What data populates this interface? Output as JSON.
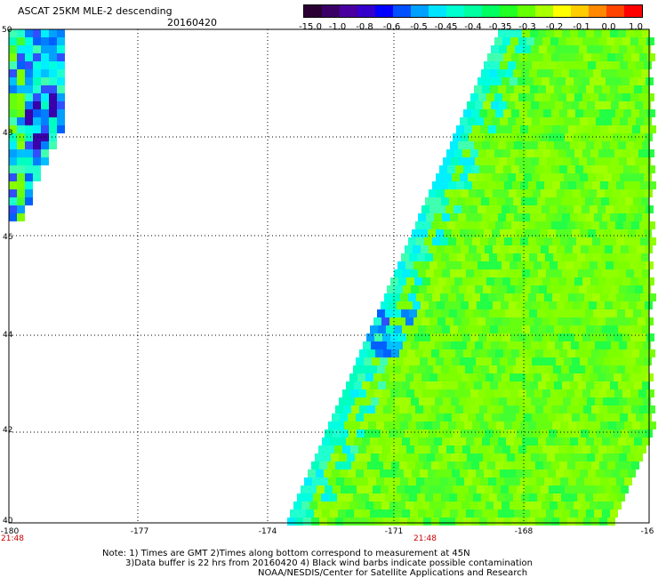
{
  "header": {
    "title": "ASCAT 25KM MLE-2 descending",
    "date": "20160420"
  },
  "colorbar": {
    "colors": [
      "#2a0033",
      "#3a0066",
      "#4a00a0",
      "#3300cc",
      "#0000ff",
      "#0050ff",
      "#00a0ff",
      "#00e5ff",
      "#00ffd0",
      "#00ffa0",
      "#00ff60",
      "#22ff22",
      "#66ff00",
      "#aaff00",
      "#ffff00",
      "#ffcc00",
      "#ff8800",
      "#ff4400",
      "#ff0000"
    ],
    "labels": [
      "-15.0",
      "-1.0",
      "-0.8",
      "-0.6",
      "-0.5",
      "-0.45",
      "-0.4",
      "-0.35",
      "-0.3",
      "-0.2",
      "-0.1",
      "0.0",
      "1.0"
    ]
  },
  "map": {
    "lat_ticks": [
      "50",
      "48",
      "46",
      "44",
      "42",
      "40"
    ],
    "lon_ticks": [
      "-180",
      "-177",
      "-174",
      "-171",
      "-168",
      "-16"
    ],
    "time_labels": [
      "21:48",
      "21:48"
    ]
  },
  "notes": [
    "Note: 1) Times are GMT 2)Times along bottom correspond to measurement at 45N",
    "3)Data buffer is 22 hrs from 20160420 4) Black wind barbs indicate possible contamination",
    "NOAA/NESDIS/Center for Satellite Applications and Research"
  ]
}
